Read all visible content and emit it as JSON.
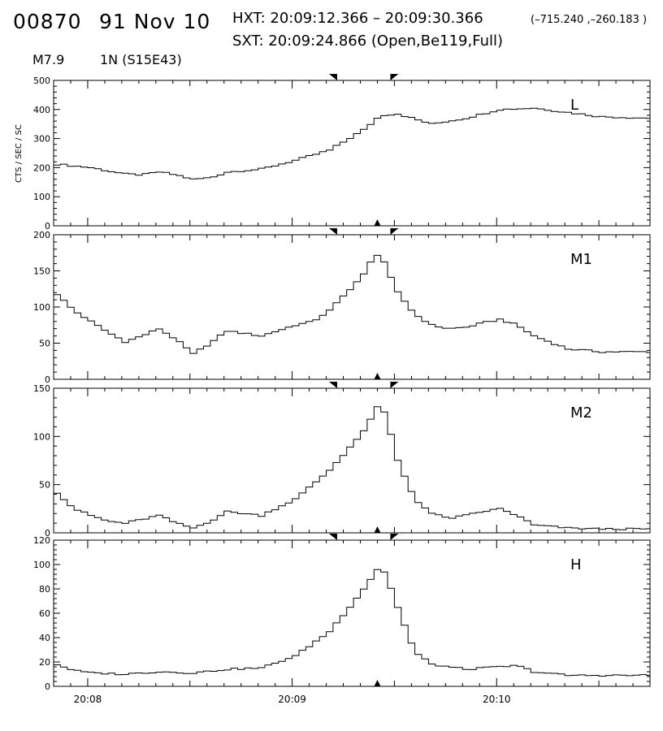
{
  "header": {
    "event_id": "00870",
    "date": "91 Nov 10",
    "hxt_label": "HXT:",
    "hxt_range": "20:09:12.366 – 20:09:30.366",
    "hxt_coords": "(–715.240 ,–260.183 )",
    "sxt_label": "SXT:",
    "sxt_time": "20:09:24.866 (Open,Be119,Full)",
    "goes_class": "M7.9",
    "location": "1N (S15E43)"
  },
  "chart_data": {
    "type": "line",
    "step": true,
    "ylabel": "CTS / SEC / SC",
    "x_tick_labels": [
      "20:08",
      "20:09",
      "20:10"
    ],
    "xlim": [
      "20:07:50",
      "20:10:45"
    ],
    "markers": {
      "interval_start": "20:09:12",
      "interval_end": "20:09:30",
      "sxt_time": "20:09:25"
    },
    "panels": [
      {
        "name": "L",
        "ylim": [
          0,
          500
        ],
        "yticks": [
          0,
          100,
          200,
          300,
          400,
          500
        ],
        "x": [
          "20:07:50",
          "20:08:00",
          "20:08:10",
          "20:08:15",
          "20:08:20",
          "20:08:25",
          "20:08:30",
          "20:08:35",
          "20:08:40",
          "20:08:50",
          "20:09:00",
          "20:09:10",
          "20:09:20",
          "20:09:25",
          "20:09:30",
          "20:09:40",
          "20:09:50",
          "20:10:00",
          "20:10:10",
          "20:10:20",
          "20:10:30",
          "20:10:45"
        ],
        "values": [
          212,
          200,
          178,
          175,
          185,
          175,
          160,
          165,
          185,
          195,
          225,
          260,
          330,
          380,
          385,
          350,
          370,
          400,
          405,
          390,
          375,
          370
        ]
      },
      {
        "name": "M1",
        "ylim": [
          0,
          200
        ],
        "yticks": [
          0,
          50,
          100,
          150,
          200
        ],
        "x": [
          "20:07:50",
          "20:07:55",
          "20:08:00",
          "20:08:05",
          "20:08:10",
          "20:08:15",
          "20:08:20",
          "20:08:25",
          "20:08:30",
          "20:08:35",
          "20:08:40",
          "20:08:50",
          "20:09:00",
          "20:09:05",
          "20:09:10",
          "20:09:15",
          "20:09:20",
          "20:09:23",
          "20:09:25",
          "20:09:27",
          "20:09:30",
          "20:09:35",
          "20:09:40",
          "20:09:45",
          "20:09:50",
          "20:09:55",
          "20:10:00",
          "20:10:05",
          "20:10:10",
          "20:10:20",
          "20:10:30",
          "20:10:45"
        ],
        "values": [
          118,
          95,
          80,
          65,
          52,
          60,
          70,
          55,
          35,
          50,
          67,
          60,
          75,
          80,
          95,
          120,
          145,
          170,
          175,
          150,
          120,
          90,
          75,
          70,
          72,
          78,
          83,
          75,
          60,
          42,
          38,
          38
        ]
      },
      {
        "name": "M2",
        "ylim": [
          0,
          150
        ],
        "yticks": [
          0,
          50,
          100,
          150
        ],
        "x": [
          "20:07:50",
          "20:07:55",
          "20:08:00",
          "20:08:05",
          "20:08:10",
          "20:08:15",
          "20:08:20",
          "20:08:25",
          "20:08:30",
          "20:08:35",
          "20:08:40",
          "20:08:50",
          "20:09:00",
          "20:09:05",
          "20:09:10",
          "20:09:15",
          "20:09:20",
          "20:09:23",
          "20:09:25",
          "20:09:27",
          "20:09:30",
          "20:09:35",
          "20:09:40",
          "20:09:45",
          "20:09:50",
          "20:09:55",
          "20:10:00",
          "20:10:05",
          "20:10:10",
          "20:10:20",
          "20:10:30",
          "20:10:45"
        ],
        "values": [
          42,
          25,
          18,
          12,
          10,
          14,
          18,
          10,
          5,
          12,
          22,
          18,
          35,
          50,
          65,
          85,
          105,
          125,
          135,
          115,
          75,
          35,
          20,
          15,
          18,
          22,
          25,
          18,
          8,
          5,
          4,
          4
        ]
      },
      {
        "name": "H",
        "ylim": [
          0,
          120
        ],
        "yticks": [
          0,
          20,
          40,
          60,
          80,
          100,
          120
        ],
        "x": [
          "20:07:50",
          "20:07:55",
          "20:08:00",
          "20:08:10",
          "20:08:20",
          "20:08:30",
          "20:08:40",
          "20:08:50",
          "20:09:00",
          "20:09:05",
          "20:09:10",
          "20:09:15",
          "20:09:20",
          "20:09:23",
          "20:09:25",
          "20:09:27",
          "20:09:30",
          "20:09:35",
          "20:09:40",
          "20:09:50",
          "20:10:00",
          "20:10:05",
          "20:10:10",
          "20:10:20",
          "20:10:30",
          "20:10:45"
        ],
        "values": [
          18,
          13,
          11,
          10,
          12,
          11,
          14,
          15,
          25,
          35,
          45,
          62,
          80,
          92,
          100,
          88,
          65,
          28,
          18,
          14,
          16,
          17,
          12,
          9,
          9,
          9
        ]
      }
    ]
  }
}
